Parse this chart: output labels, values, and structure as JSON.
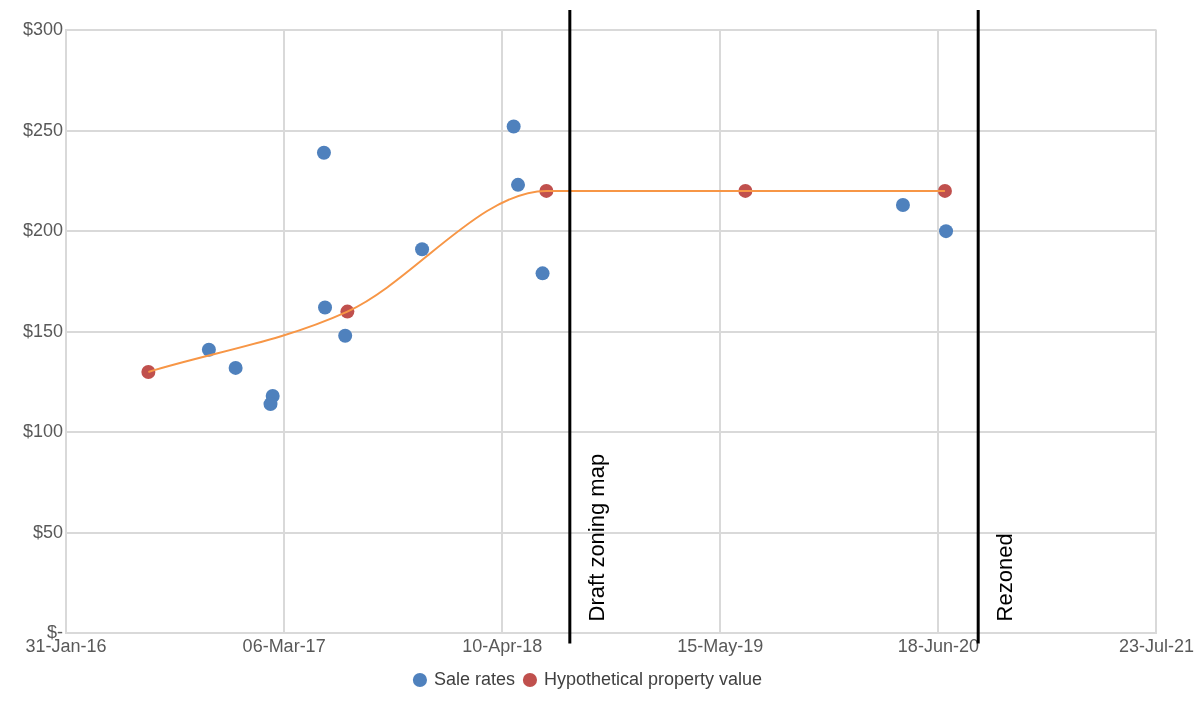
{
  "chart_data": {
    "type": "scatter",
    "series": [
      {
        "name": "Sale rates",
        "color": "#4f81bd",
        "x": [
          "2016-10-19",
          "2016-12-07",
          "2017-02-13",
          "2017-02-09",
          "2017-05-18",
          "2017-05-20",
          "2017-06-26",
          "2017-11-14",
          "2018-05-01",
          "2018-05-09",
          "2018-06-23",
          "2020-04-14",
          "2020-07-02"
        ],
        "values": [
          141,
          132,
          118,
          114,
          239,
          162,
          148,
          191,
          252,
          223,
          179,
          213,
          200
        ]
      },
      {
        "name": "Hypothetical property value",
        "color": "#c0504d",
        "x": [
          "2016-06-30",
          "2017-06-30",
          "2018-06-30",
          "2019-06-30",
          "2020-06-30"
        ],
        "values": [
          130,
          160,
          220,
          220,
          220
        ]
      },
      {
        "type": "line",
        "color": "#f79646",
        "marker": "none",
        "x": [
          "2016-06-30",
          "2017-06-30",
          "2018-06-30",
          "2019-06-30",
          "2020-06-30"
        ],
        "values": [
          130,
          160,
          220,
          220,
          220
        ]
      }
    ],
    "xlim": [
      "2016-01-31",
      "2021-07-23"
    ],
    "xticks": [
      {
        "value": "2016-01-31",
        "label": "31-Jan-16"
      },
      {
        "value": "2017-03-06",
        "label": "06-Mar-17"
      },
      {
        "value": "2018-04-10",
        "label": "10-Apr-18"
      },
      {
        "value": "2019-05-15",
        "label": "15-May-19"
      },
      {
        "value": "2020-06-18",
        "label": "18-Jun-20"
      },
      {
        "value": "2021-07-23",
        "label": "23-Jul-21"
      }
    ],
    "ylim": [
      0,
      300
    ],
    "yticks": [
      {
        "value": 0,
        "label": "$-"
      },
      {
        "value": 50,
        "label": "$50"
      },
      {
        "value": 100,
        "label": "$100"
      },
      {
        "value": 150,
        "label": "$150"
      },
      {
        "value": 200,
        "label": "$200"
      },
      {
        "value": 250,
        "label": "$250"
      },
      {
        "value": 300,
        "label": "$300"
      }
    ],
    "ref_lines": [
      {
        "axis": "x",
        "value": "2018-08-12",
        "label": "Draft zoning map",
        "color": "#000000"
      },
      {
        "axis": "x",
        "value": "2020-08-30",
        "label": "Rezoned",
        "color": "#000000"
      }
    ],
    "grid": true,
    "legend": "bottom",
    "marker": "circle"
  }
}
